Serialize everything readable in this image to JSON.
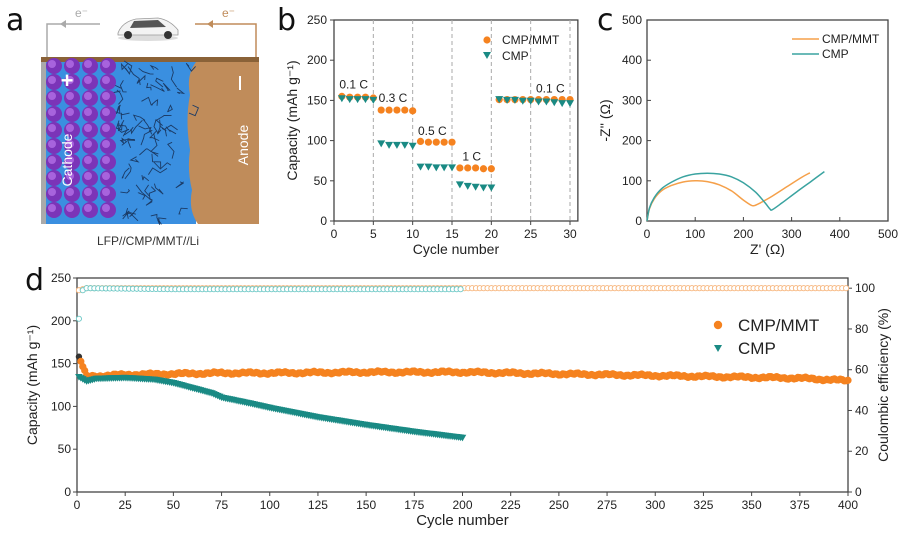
{
  "panels": {
    "a": {
      "label": "a",
      "caption": "LFP//CMP/MMT//Li",
      "electron_left": "e⁻",
      "electron_right": "e⁻",
      "cathode_label": "Cathode",
      "anode_label": "Anode",
      "plus_sign": "+",
      "minus_sign": "–",
      "colors": {
        "cathode_particles": "#8a3fc7",
        "electrolyte": "#3a8fe0",
        "anode": "#c08c5a",
        "current_collector_top": "#8a6238",
        "wire_left": "#aaaaaa",
        "wire_right": "#c08c5a"
      }
    },
    "b": {
      "label": "b"
    },
    "c": {
      "label": "c"
    },
    "d": {
      "label": "d"
    }
  },
  "chart_data": [
    {
      "id": "b",
      "type": "scatter",
      "title": "",
      "xlabel": "Cycle number",
      "ylabel": "Capacity (mAh g⁻¹)",
      "xlim": [
        0,
        31
      ],
      "ylim": [
        0,
        250
      ],
      "xticks": [
        0,
        5,
        10,
        15,
        20,
        25,
        30
      ],
      "yticks": [
        0,
        50,
        100,
        150,
        200,
        250
      ],
      "vertical_dashed_lines_at": [
        5,
        10,
        15,
        20,
        25,
        30
      ],
      "legend": {
        "position": "top-right",
        "entries": [
          "CMP/MMT",
          "CMP"
        ]
      },
      "annotations": [
        {
          "text": "0.1 C",
          "x": 2.5,
          "y": 165
        },
        {
          "text": "0.3 C",
          "x": 7.5,
          "y": 148
        },
        {
          "text": "0.5 C",
          "x": 12.5,
          "y": 107
        },
        {
          "text": "1 C",
          "x": 17.5,
          "y": 75
        },
        {
          "text": "0.1 C",
          "x": 27.5,
          "y": 160
        }
      ],
      "x": [
        1,
        2,
        3,
        4,
        5,
        6,
        7,
        8,
        9,
        10,
        11,
        12,
        13,
        14,
        15,
        16,
        17,
        18,
        19,
        20,
        21,
        22,
        23,
        24,
        25,
        26,
        27,
        28,
        29,
        30
      ],
      "series": [
        {
          "name": "CMP/MMT",
          "marker": "circle",
          "color": "#f5821f",
          "values": [
            155,
            154,
            154,
            154,
            153,
            138,
            138,
            138,
            138,
            137,
            99,
            98,
            98,
            98,
            98,
            66,
            66,
            66,
            65,
            65,
            151,
            151,
            151,
            151,
            151,
            151,
            151,
            151,
            151,
            151
          ]
        },
        {
          "name": "CMP",
          "marker": "triangle-down",
          "color": "#1a8a84",
          "values": [
            152,
            151,
            151,
            151,
            150,
            96,
            94,
            94,
            94,
            93,
            67,
            67,
            66,
            66,
            66,
            45,
            43,
            42,
            41,
            41,
            151,
            150,
            150,
            149,
            149,
            148,
            148,
            147,
            146,
            146
          ]
        }
      ]
    },
    {
      "id": "c",
      "type": "line",
      "title": "",
      "xlabel": "Z' (Ω)",
      "ylabel": "-Z'' (Ω)",
      "xlim": [
        0,
        500
      ],
      "ylim": [
        0,
        500
      ],
      "xticks": [
        0,
        100,
        200,
        300,
        400,
        500
      ],
      "yticks": [
        0,
        100,
        200,
        300,
        400,
        500
      ],
      "legend": {
        "position": "top-right",
        "entries": [
          "CMP/MMT",
          "CMP"
        ]
      },
      "series": [
        {
          "name": "CMP/MMT",
          "color": "#f5a04a",
          "x": [
            0,
            5,
            15,
            30,
            50,
            75,
            100,
            125,
            150,
            175,
            200,
            215,
            222,
            235,
            260,
            290,
            320,
            338
          ],
          "y": [
            0,
            30,
            55,
            75,
            88,
            97,
            100,
            98,
            90,
            75,
            52,
            40,
            38,
            45,
            62,
            85,
            108,
            120
          ]
        },
        {
          "name": "CMP",
          "color": "#3aa3a0",
          "x": [
            0,
            5,
            15,
            30,
            50,
            75,
            100,
            125,
            150,
            175,
            200,
            225,
            245,
            255,
            260,
            280,
            310,
            340,
            368
          ],
          "y": [
            0,
            32,
            58,
            80,
            96,
            110,
            117,
            119,
            117,
            110,
            95,
            72,
            45,
            30,
            28,
            45,
            72,
            98,
            123
          ]
        }
      ]
    },
    {
      "id": "d",
      "type": "scatter",
      "title": "",
      "xlabel": "Cycle number",
      "ylabel": "Capacity (mAh g⁻¹)",
      "ylabel_right": "Coulombic efficiency (%)",
      "xlim": [
        0,
        400
      ],
      "ylim": [
        0,
        250
      ],
      "ylim_right": [
        0,
        105
      ],
      "xticks": [
        0,
        25,
        50,
        75,
        100,
        125,
        150,
        175,
        200,
        225,
        250,
        275,
        300,
        325,
        350,
        375,
        400
      ],
      "yticks": [
        0,
        50,
        100,
        150,
        200,
        250
      ],
      "yticks_right": [
        0,
        20,
        40,
        60,
        80,
        100
      ],
      "legend": {
        "position": "top-right",
        "entries": [
          "CMP/MMT",
          "CMP"
        ]
      },
      "series": [
        {
          "name": "CMP/MMT capacity",
          "axis": "left",
          "marker": "circle",
          "color": "#f5821f",
          "x": [
            1,
            5,
            25,
            50,
            75,
            100,
            150,
            200,
            225,
            250,
            300,
            325,
            350,
            375,
            400
          ],
          "y": [
            158,
            135,
            137,
            138,
            139,
            139,
            140,
            140,
            139,
            138,
            136,
            135,
            134,
            133,
            130
          ]
        },
        {
          "name": "CMP capacity",
          "axis": "left",
          "marker": "triangle-down",
          "color": "#1a8a84",
          "x": [
            1,
            5,
            10,
            25,
            40,
            50,
            60,
            70,
            75,
            90,
            100,
            125,
            150,
            175,
            200
          ],
          "y": [
            134,
            129,
            132,
            133,
            131,
            127,
            121,
            115,
            110,
            103,
            98,
            87,
            78,
            70,
            63
          ]
        },
        {
          "name": "CMP/MMT CE",
          "axis": "right",
          "marker": "open-circle",
          "color": "#f7b47a",
          "x": [
            1,
            5,
            50,
            100,
            200,
            300,
            400
          ],
          "y": [
            99,
            100,
            100,
            100,
            100,
            100,
            100
          ]
        },
        {
          "name": "CMP CE",
          "axis": "right",
          "marker": "open-circle",
          "color": "#6cc8c6",
          "x": [
            1,
            3,
            5,
            50,
            100,
            150,
            200
          ],
          "y": [
            85,
            99,
            100,
            99.5,
            99.5,
            99.5,
            99.5
          ]
        }
      ]
    }
  ]
}
